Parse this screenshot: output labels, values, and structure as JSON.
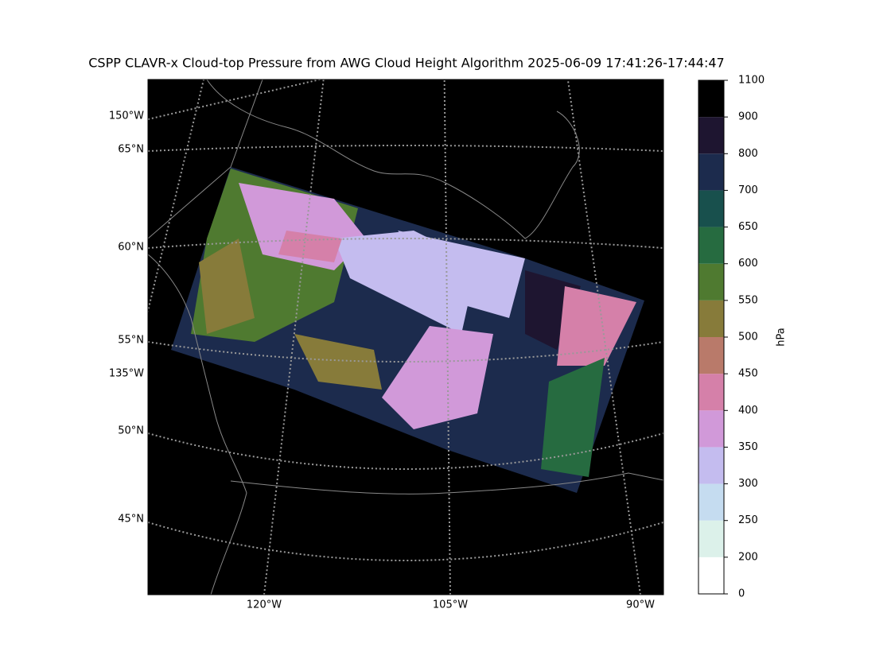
{
  "title": "CSPP CLAVR-x Cloud-top Pressure from AWG Cloud Height Algorithm 2025-06-09 17:41:26-17:44:47",
  "map": {
    "lat_labels": [
      "65°N",
      "60°N",
      "55°N",
      "50°N",
      "45°N"
    ],
    "lon_labels_left": [
      "150°W",
      "135°W"
    ],
    "lon_labels_bottom": [
      "120°W",
      "105°W",
      "90°W"
    ]
  },
  "colorbar": {
    "label": "hPa",
    "ticks": [
      0,
      200,
      250,
      300,
      350,
      400,
      450,
      500,
      550,
      600,
      650,
      700,
      800,
      900,
      1100
    ],
    "colors": [
      "#ffffff",
      "#dcf1ea",
      "#c5dcf0",
      "#c4bcef",
      "#d199d9",
      "#d580a9",
      "#b97a6a",
      "#877b3a",
      "#4f7a30",
      "#266b40",
      "#18504d",
      "#1c2b4d",
      "#1e1530",
      "#000000"
    ]
  }
}
